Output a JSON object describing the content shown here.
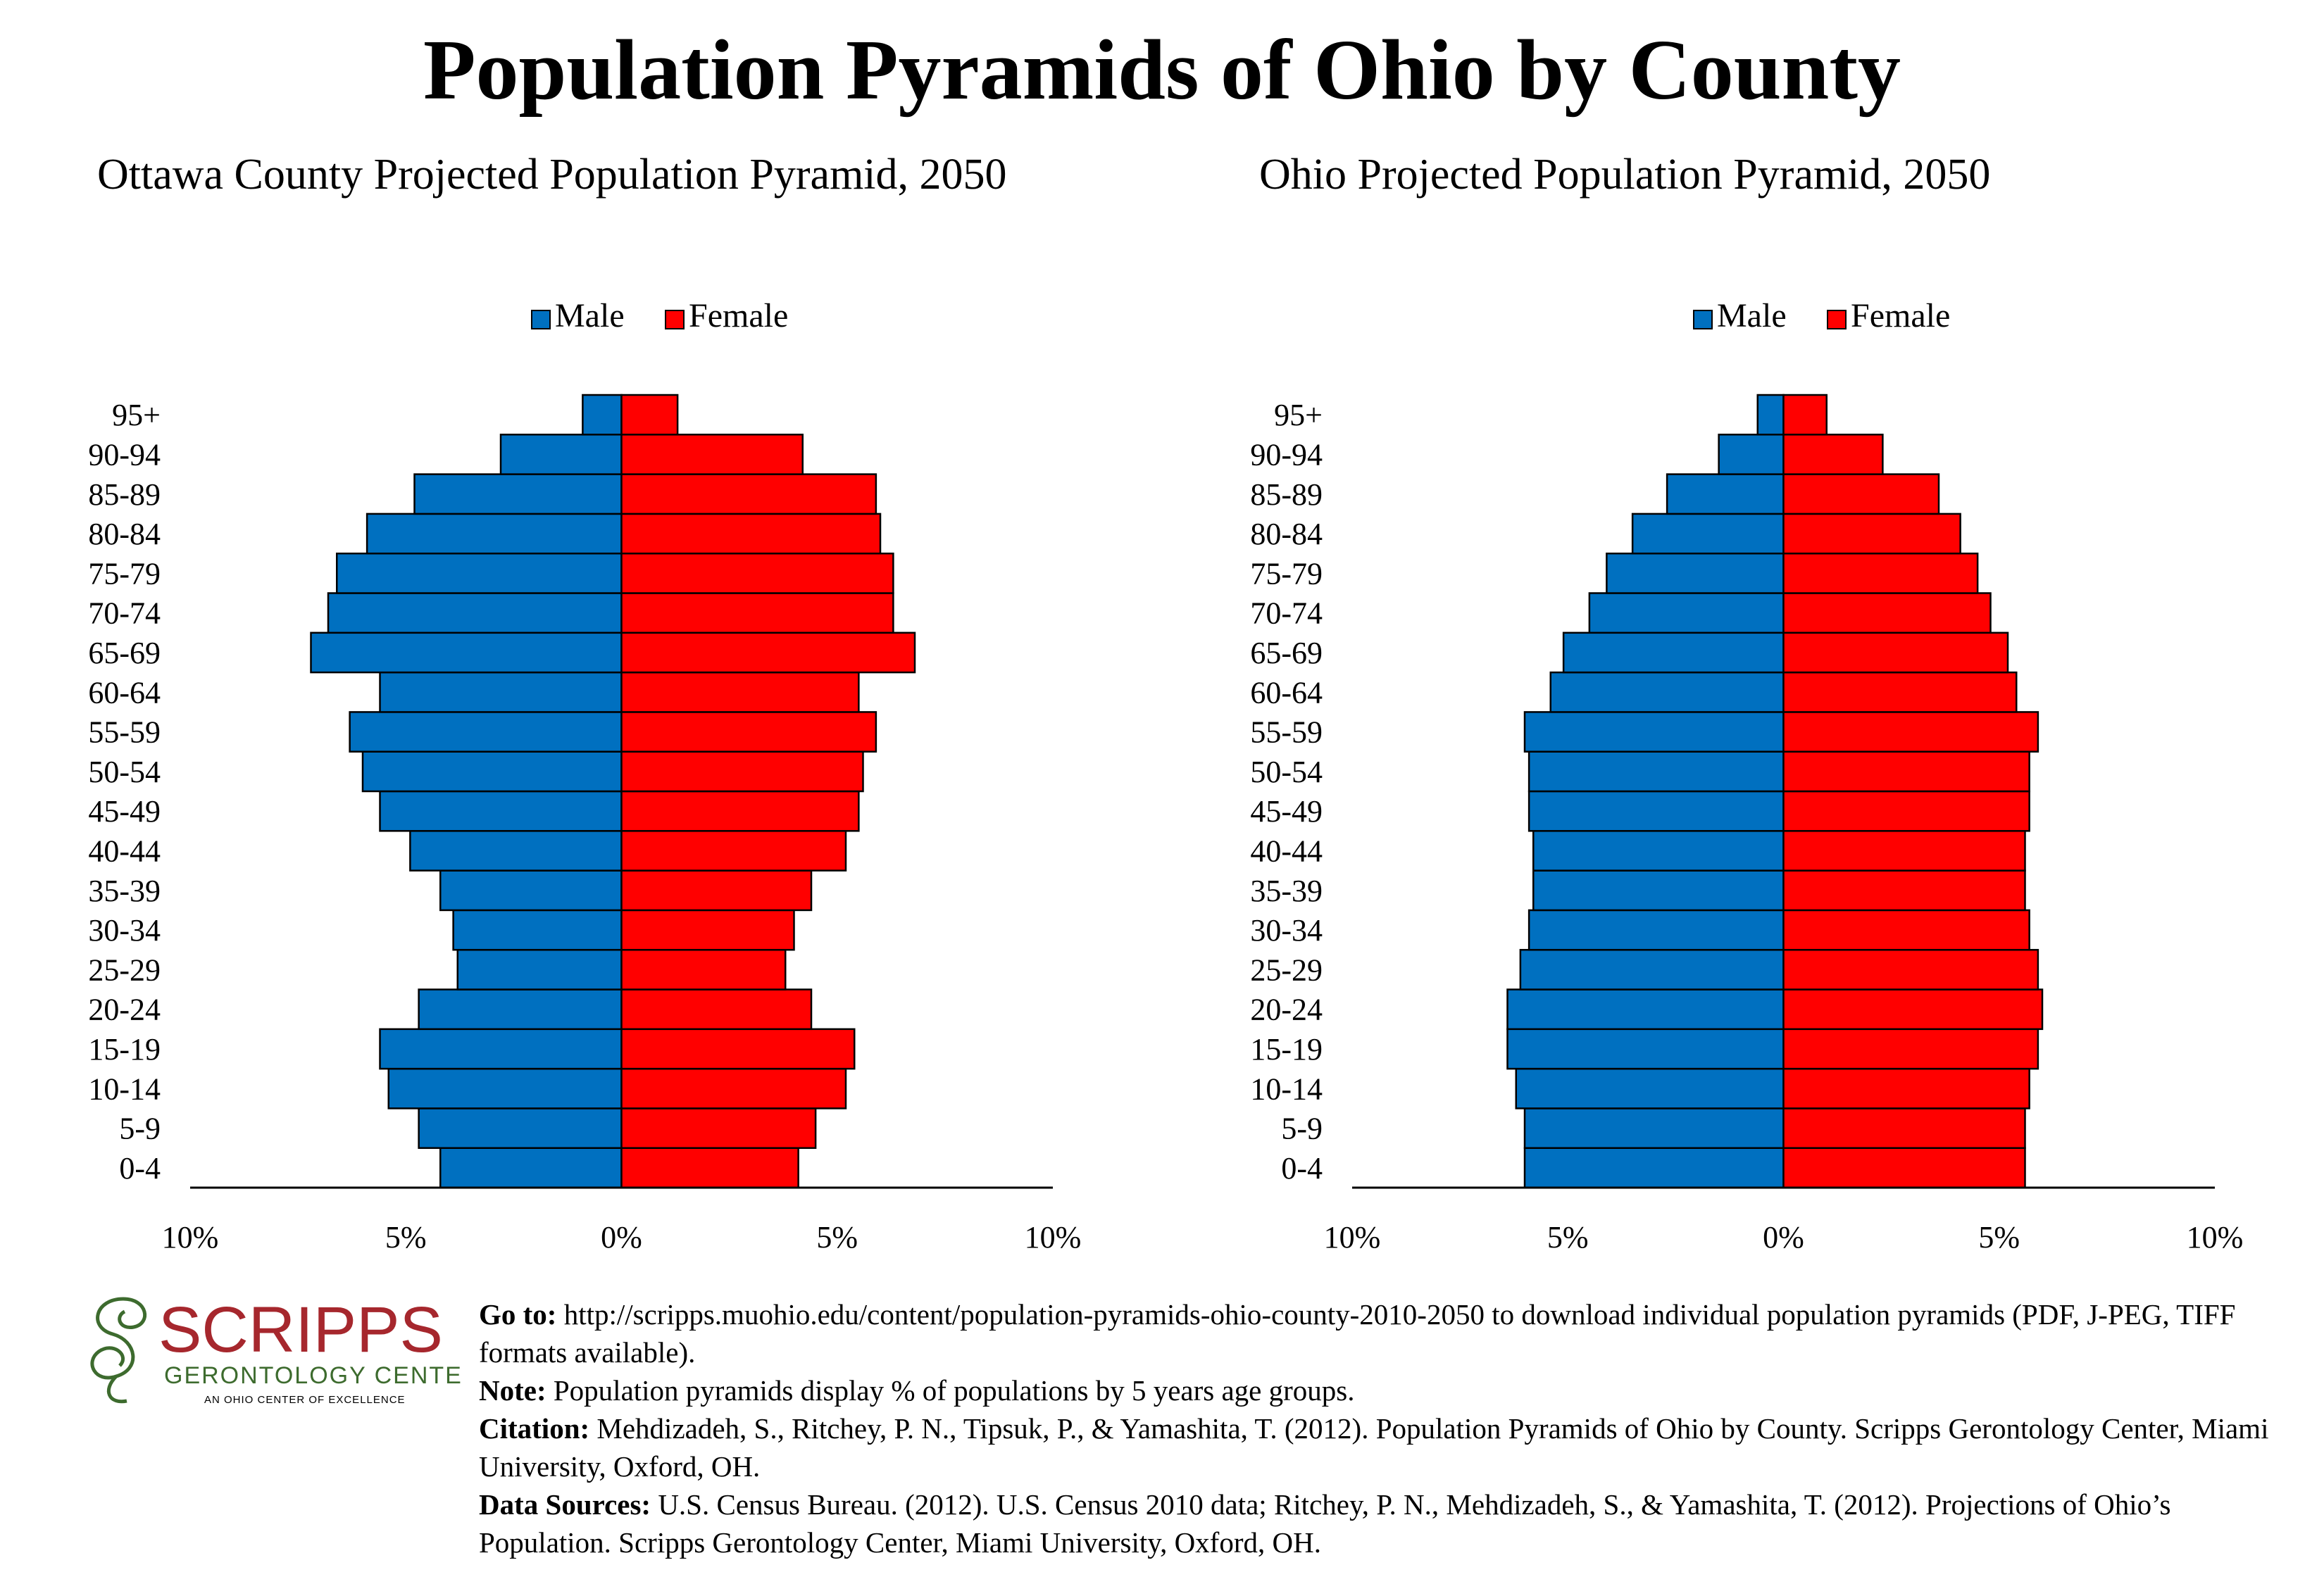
{
  "page": {
    "title": "Population Pyramids of Ohio by County"
  },
  "chart_data": [
    {
      "type": "bar",
      "orientation": "horizontal-pyramid",
      "title": "Ottawa County Projected Population Pyramid, 2050",
      "categories": [
        "0-4",
        "5-9",
        "10-14",
        "15-19",
        "20-24",
        "25-29",
        "30-34",
        "35-39",
        "40-44",
        "45-49",
        "50-54",
        "55-59",
        "60-64",
        "65-69",
        "70-74",
        "75-79",
        "80-84",
        "85-89",
        "90-94",
        "95+"
      ],
      "series": [
        {
          "name": "Male",
          "color": "#0070c0",
          "values": [
            4.2,
            4.7,
            5.4,
            5.6,
            4.7,
            3.8,
            3.9,
            4.2,
            4.9,
            5.6,
            6.0,
            6.3,
            5.6,
            7.2,
            6.8,
            6.6,
            5.9,
            4.8,
            2.8,
            0.9
          ]
        },
        {
          "name": "Female",
          "color": "#ff0000",
          "values": [
            4.1,
            4.5,
            5.2,
            5.4,
            4.4,
            3.8,
            4.0,
            4.4,
            5.2,
            5.5,
            5.6,
            5.9,
            5.5,
            6.8,
            6.3,
            6.3,
            6.0,
            5.9,
            4.2,
            1.3
          ]
        }
      ],
      "xlim": [
        -10,
        10
      ],
      "xticks": [
        "10%",
        "5%",
        "0%",
        "5%",
        "10%"
      ],
      "legend": "top-center"
    },
    {
      "type": "bar",
      "orientation": "horizontal-pyramid",
      "title": "Ohio Projected Population Pyramid, 2050",
      "categories": [
        "0-4",
        "5-9",
        "10-14",
        "15-19",
        "20-24",
        "25-29",
        "30-34",
        "35-39",
        "40-44",
        "45-49",
        "50-54",
        "55-59",
        "60-64",
        "65-69",
        "70-74",
        "75-79",
        "80-84",
        "85-89",
        "90-94",
        "95+"
      ],
      "series": [
        {
          "name": "Male",
          "color": "#0070c0",
          "values": [
            6.0,
            6.0,
            6.2,
            6.4,
            6.4,
            6.1,
            5.9,
            5.8,
            5.8,
            5.9,
            5.9,
            6.0,
            5.4,
            5.1,
            4.5,
            4.1,
            3.5,
            2.7,
            1.5,
            0.6
          ]
        },
        {
          "name": "Female",
          "color": "#ff0000",
          "values": [
            5.6,
            5.6,
            5.7,
            5.9,
            6.0,
            5.9,
            5.7,
            5.6,
            5.6,
            5.7,
            5.7,
            5.9,
            5.4,
            5.2,
            4.8,
            4.5,
            4.1,
            3.6,
            2.3,
            1.0
          ]
        }
      ],
      "xlim": [
        -10,
        10
      ],
      "xticks": [
        "10%",
        "5%",
        "0%",
        "5%",
        "10%"
      ],
      "legend": "top-center"
    }
  ],
  "logo": {
    "name": "SCRIPPS",
    "subtitle": "GERONTOLOGY CENTER",
    "tagline": "AN OHIO CENTER OF EXCELLENCE",
    "color": "#a6272d",
    "subtitle_color": "#3d6b2e"
  },
  "footnotes": {
    "goto_label": "Go to:",
    "goto_text": " http://scripps.muohio.edu/content/population-pyramids-ohio-county-2010-2050 to download individual population pyramids (PDF, J-PEG, TIFF formats available).",
    "note_label": "Note:",
    "note_text": " Population pyramids display % of populations by 5 years age groups.",
    "citation_label": "Citation:",
    "citation_text": " Mehdizadeh, S., Ritchey, P. N., Tipsuk, P., & Yamashita, T. (2012). Population Pyramids of Ohio by County. Scripps Gerontology Center, Miami University, Oxford, OH.",
    "sources_label": "Data Sources:",
    "sources_text": " U.S. Census Bureau. (2012). U.S. Census 2010 data; Ritchey, P. N., Mehdizadeh, S., & Yamashita, T. (2012). Projections of Ohio’s Population. Scripps Gerontology Center, Miami University, Oxford, OH."
  }
}
